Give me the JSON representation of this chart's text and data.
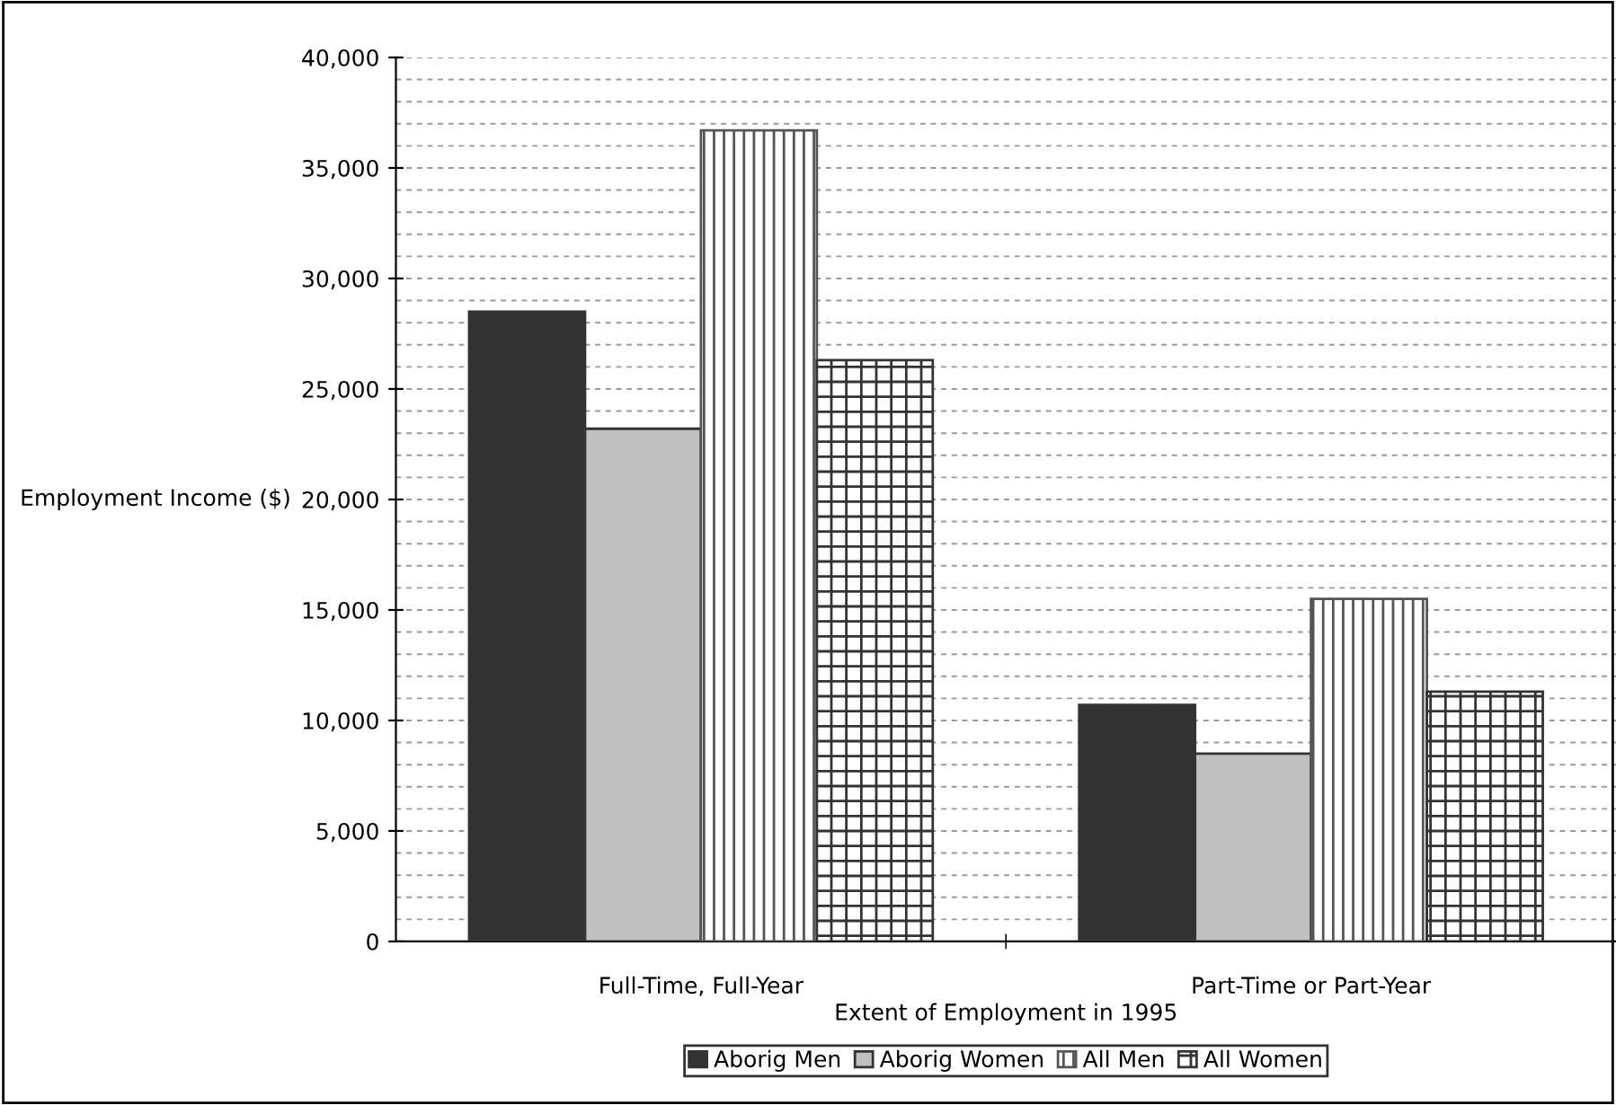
{
  "chart_data": {
    "type": "bar",
    "xlabel": "Extent of Employment in 1995",
    "ylabel": "Employment Income ($)",
    "categories": [
      "Full-Time, Full-Year",
      "Part-Time or Part-Year"
    ],
    "series": [
      {
        "name": "Aborig Men",
        "color": "#333333",
        "values": [
          28500,
          10700
        ]
      },
      {
        "name": "Aborig Women",
        "color": "#c0c0c0",
        "values": [
          23200,
          8500
        ]
      },
      {
        "name": "All Men",
        "color": "#555555",
        "values": [
          36700,
          15500
        ]
      },
      {
        "name": "All Women",
        "color": "#333333",
        "values": [
          26300,
          11300
        ]
      }
    ],
    "ylim": [
      0,
      40000
    ],
    "yticks": [
      {
        "value": 0,
        "label": "0"
      },
      {
        "value": 5000,
        "label": "5,000"
      },
      {
        "value": 10000,
        "label": "10,000"
      },
      {
        "value": 15000,
        "label": "15,000"
      },
      {
        "value": 20000,
        "label": "20,000"
      },
      {
        "value": 25000,
        "label": "25,000"
      },
      {
        "value": 30000,
        "label": "30,000"
      },
      {
        "value": 35000,
        "label": "35,000"
      },
      {
        "value": 40000,
        "label": "40,000"
      }
    ],
    "grid": "y",
    "legend": "bottom"
  }
}
